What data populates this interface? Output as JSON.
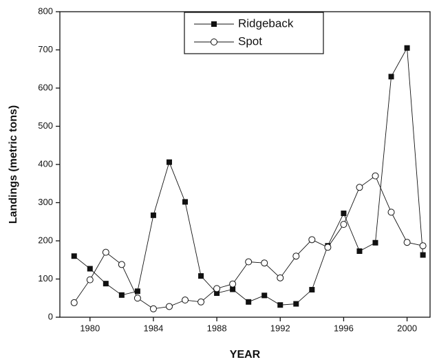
{
  "chart_data": {
    "type": "line",
    "xlabel": "YEAR",
    "ylabel": "Landings (metric tons)",
    "x": [
      1979,
      1980,
      1981,
      1982,
      1983,
      1984,
      1985,
      1986,
      1987,
      1988,
      1989,
      1990,
      1991,
      1992,
      1993,
      1994,
      1995,
      1996,
      1997,
      1998,
      1999,
      2000,
      2001
    ],
    "series": [
      {
        "name": "Ridgeback",
        "color": "#111111",
        "marker": "filled-square",
        "values": [
          160,
          127,
          88,
          58,
          68,
          267,
          406,
          302,
          108,
          63,
          73,
          40,
          57,
          32,
          35,
          72,
          187,
          272,
          173,
          195,
          630,
          705,
          163
        ]
      },
      {
        "name": "Spot",
        "color": "#111111",
        "marker": "open-circle",
        "values": [
          38,
          98,
          170,
          138,
          50,
          22,
          28,
          45,
          40,
          75,
          87,
          145,
          142,
          103,
          160,
          203,
          183,
          243,
          340,
          370,
          275,
          196,
          187
        ]
      }
    ],
    "xlim": [
      1978.1,
      2001.45
    ],
    "xticks": [
      1980,
      1984,
      1988,
      1992,
      1996,
      2000
    ],
    "ylim": [
      0,
      800
    ],
    "yticks": [
      0,
      100,
      200,
      300,
      400,
      500,
      600,
      700,
      800
    ],
    "legend": "top"
  }
}
